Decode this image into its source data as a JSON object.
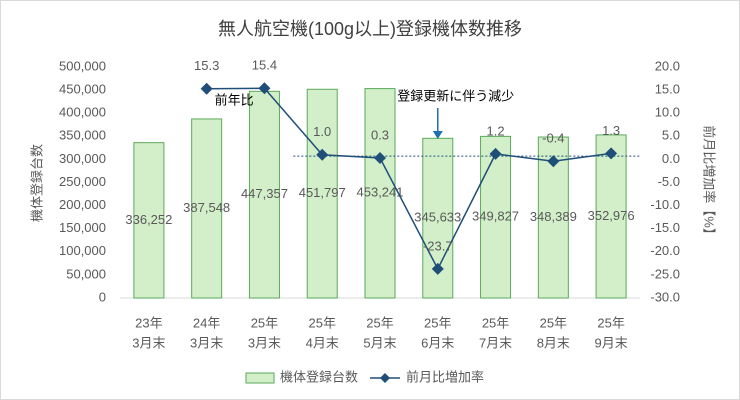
{
  "chart_data": {
    "type": "bar-line",
    "title": "無人航空機(100g以上)登録機体数推移",
    "y_label": "機体登録台数",
    "y2_label": "前月比増加率【%】",
    "categories": [
      [
        "23年",
        "3月末"
      ],
      [
        "24年",
        "3月末"
      ],
      [
        "25年",
        "3月末"
      ],
      [
        "25年",
        "4月末"
      ],
      [
        "25年",
        "5月末"
      ],
      [
        "25年",
        "6月末"
      ],
      [
        "25年",
        "7月末"
      ],
      [
        "25年",
        "8月末"
      ],
      [
        "25年",
        "9月末"
      ]
    ],
    "series": [
      {
        "name": "機体登録台数",
        "type": "bar",
        "color": "#d3efc9",
        "edge": "#5aaa5a",
        "values": [
          336252,
          387548,
          447357,
          451797,
          453241,
          345633,
          349827,
          348389,
          352976
        ],
        "value_labels": [
          "336,252",
          "387,548",
          "447,357",
          "451,797",
          "453,241",
          "345,633",
          "349,827",
          "348,389",
          "352,976"
        ]
      },
      {
        "name": "前月比増加率",
        "type": "line",
        "axis": "y2",
        "color": "#1f4e79",
        "values": [
          null,
          15.3,
          15.4,
          1.0,
          0.3,
          -23.7,
          1.2,
          -0.4,
          1.3
        ],
        "value_labels": [
          null,
          "15.3",
          "15.4",
          "1.0",
          "0.3",
          "-23.7",
          "1.2",
          "-0.4",
          "1.3"
        ]
      }
    ],
    "reference_line": 0.7,
    "annotations": [
      {
        "text": "前年比",
        "category": 1
      },
      {
        "text": "登録更新に伴う減少",
        "category": 5
      }
    ],
    "ylim": [
      0,
      500000
    ],
    "yticks": [
      0,
      {
        "value": 50000,
        "label": "50,000"
      },
      {
        "value": 100000,
        "label": "100,000"
      },
      {
        "value": 150000,
        "label": "150,000"
      },
      {
        "value": 200000,
        "label": "200,000"
      },
      {
        "value": 250000,
        "label": "250,000"
      },
      {
        "value": 300000,
        "label": "300,000"
      },
      {
        "value": 350000,
        "label": "350,000"
      },
      {
        "value": 400000,
        "label": "400,000"
      },
      {
        "value": 450000,
        "label": "450,000"
      },
      {
        "value": 500000,
        "label": "500,000"
      }
    ],
    "y2lim": [
      -30,
      20
    ],
    "y2ticks": [
      {
        "value": -30,
        "label": "-30.0"
      },
      {
        "value": -25,
        "label": "-25.0"
      },
      {
        "value": -20,
        "label": "-20.0"
      },
      {
        "value": -15,
        "label": "-15.0"
      },
      {
        "value": -10,
        "label": "-10.0"
      },
      {
        "value": -5,
        "label": "-5.0"
      },
      {
        "value": 0,
        "label": "0.0"
      },
      {
        "value": 5,
        "label": "5.0"
      },
      {
        "value": 10,
        "label": "10.0"
      },
      {
        "value": 15,
        "label": "15.0"
      },
      {
        "value": 20,
        "label": "20.0"
      }
    ],
    "grid": false,
    "legend": "bottom"
  }
}
